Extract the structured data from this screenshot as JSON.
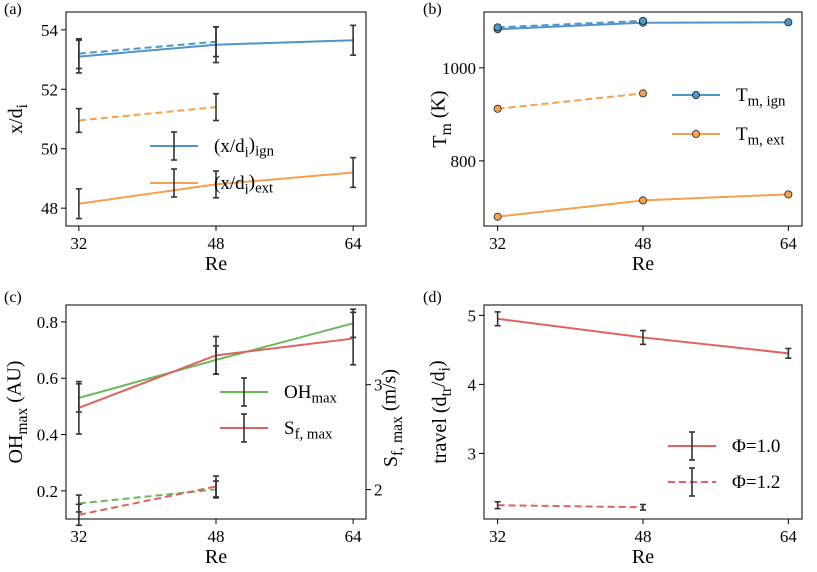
{
  "colors": {
    "blue": "#4f95c9",
    "orange": "#f5a04d",
    "green": "#6ab857",
    "red": "#de6262",
    "errorbar": "#333333"
  },
  "chart_data": [
    {
      "panel": "(a)",
      "type": "line",
      "xlabel": "Re",
      "ylabel": {
        "main": "x/d",
        "sub": "i"
      },
      "x_ticks": [
        "32",
        "48",
        "64"
      ],
      "y_ticks": [
        "48",
        "50",
        "52",
        "54"
      ],
      "xlim": [
        30.5,
        65.5
      ],
      "ylim": [
        47.4,
        54.6
      ],
      "legend": [
        {
          "main": "(x/d",
          "sub": "i",
          "close": ")",
          "sub2": "ign",
          "color": "#4f95c9",
          "style": "solid"
        },
        {
          "main": "(x/d",
          "sub": "i",
          "close": ")",
          "sub2": "ext",
          "color": "#f5a04d",
          "style": "solid"
        }
      ],
      "series": [
        {
          "name": "(x/d_i)_ign",
          "color": "#4f95c9",
          "style": "solid",
          "markers": false,
          "x": [
            32,
            48,
            64
          ],
          "y": [
            53.1,
            53.5,
            53.65
          ],
          "err": [
            0.55,
            0.6,
            0.5
          ]
        },
        {
          "name": "(x/d_i)_ign dashed",
          "color": "#4f95c9",
          "style": "dashed",
          "markers": false,
          "x": [
            32,
            48
          ],
          "y": [
            53.2,
            53.6
          ],
          "err": [
            0.5,
            0.5
          ]
        },
        {
          "name": "(x/d_i)_ext dashed",
          "color": "#f5a04d",
          "style": "dashed",
          "markers": false,
          "x": [
            32,
            48
          ],
          "y": [
            50.95,
            51.4
          ],
          "err": [
            0.4,
            0.45
          ]
        },
        {
          "name": "(x/d_i)_ext",
          "color": "#f5a04d",
          "style": "solid",
          "markers": false,
          "x": [
            32,
            48,
            64
          ],
          "y": [
            48.15,
            48.8,
            49.2
          ],
          "err": [
            0.5,
            0.45,
            0.5
          ]
        }
      ]
    },
    {
      "panel": "(b)",
      "type": "line",
      "xlabel": "Re",
      "ylabel": {
        "main": "T",
        "sub": "m",
        "rest": " (K)"
      },
      "x_ticks": [
        "32",
        "48",
        "64"
      ],
      "y_ticks": [
        "800",
        "1000"
      ],
      "xlim": [
        30.5,
        65.5
      ],
      "ylim": [
        660,
        1120
      ],
      "legend": [
        {
          "main": "T",
          "sub": "m, ign",
          "color": "#4f95c9",
          "style": "solid",
          "marker": true
        },
        {
          "main": "T",
          "sub": "m, ext",
          "color": "#f5a04d",
          "style": "solid",
          "marker": true
        }
      ],
      "series": [
        {
          "name": "T_m,ign",
          "color": "#4f95c9",
          "style": "solid",
          "markers": true,
          "x": [
            32,
            48,
            64
          ],
          "y": [
            1083,
            1097,
            1098
          ]
        },
        {
          "name": "T_m,ign dashed",
          "color": "#4f95c9",
          "style": "dashed",
          "markers": true,
          "x": [
            32,
            48
          ],
          "y": [
            1087,
            1101
          ]
        },
        {
          "name": "T_m,ext dashed",
          "color": "#f5a04d",
          "style": "dashed",
          "markers": true,
          "x": [
            32,
            48
          ],
          "y": [
            912,
            945
          ]
        },
        {
          "name": "T_m,ext",
          "color": "#f5a04d",
          "style": "solid",
          "markers": true,
          "x": [
            32,
            48,
            64
          ],
          "y": [
            680,
            715,
            728
          ]
        }
      ]
    },
    {
      "panel": "(c)",
      "type": "line",
      "xlabel": "Re",
      "ylabel": {
        "main": "OH",
        "sub": "max",
        "rest": " (AU)"
      },
      "ylabel_right": {
        "main": "S",
        "sub": "f, max",
        "rest": " (m/s)"
      },
      "x_ticks": [
        "32",
        "48",
        "64"
      ],
      "y_ticks": [
        "0.2",
        "0.4",
        "0.6",
        "0.8"
      ],
      "y2_ticks": [
        "2",
        "3"
      ],
      "xlim": [
        30.5,
        65.5
      ],
      "ylim": [
        0.1,
        0.86
      ],
      "y2lim": [
        1.72,
        3.76
      ],
      "legend": [
        {
          "main": "OH",
          "sub": "max",
          "color": "#6ab857",
          "style": "solid"
        },
        {
          "main": "S",
          "sub": "f, max",
          "color": "#de6262",
          "style": "solid"
        }
      ],
      "series": [
        {
          "name": "OH_max",
          "axis": "left",
          "color": "#6ab857",
          "style": "solid",
          "markers": false,
          "x": [
            32,
            48,
            64
          ],
          "y": [
            0.53,
            0.665,
            0.795
          ],
          "err": [
            0.05,
            0.05,
            0.05
          ]
        },
        {
          "name": "OH_max dashed",
          "axis": "left",
          "color": "#6ab857",
          "style": "dashed",
          "markers": false,
          "x": [
            32,
            48
          ],
          "y": [
            0.155,
            0.205
          ],
          "err": [
            0.03,
            0.03
          ]
        },
        {
          "name": "S_f,max",
          "axis": "right",
          "color": "#de6262",
          "style": "solid",
          "markers": false,
          "x": [
            32,
            48,
            64
          ],
          "y": [
            2.78,
            3.28,
            3.44
          ],
          "err": [
            0.25,
            0.18,
            0.25
          ]
        },
        {
          "name": "S_f,max dashed",
          "axis": "right",
          "color": "#de6262",
          "style": "dashed",
          "markers": false,
          "x": [
            32,
            48
          ],
          "y": [
            1.76,
            2.03
          ],
          "err": [
            0.1,
            0.1
          ]
        }
      ]
    },
    {
      "panel": "(d)",
      "type": "line",
      "xlabel": "Re",
      "ylabel": {
        "main": "travel (d",
        "sub": "tr",
        "mid": "/d",
        "sub2": "i",
        "rest": ")"
      },
      "x_ticks": [
        "32",
        "48",
        "64"
      ],
      "y_ticks": [
        "3",
        "4",
        "5"
      ],
      "xlim": [
        30.5,
        65.5
      ],
      "ylim": [
        2.05,
        5.15
      ],
      "legend": [
        {
          "main": "Φ=1.0",
          "color": "#de6262",
          "style": "solid"
        },
        {
          "main": "Φ=1.2",
          "color": "#de6262",
          "style": "dashed"
        }
      ],
      "series": [
        {
          "name": "Φ=1.0",
          "color": "#de6262",
          "style": "solid",
          "markers": false,
          "x": [
            32,
            48,
            64
          ],
          "y": [
            4.95,
            4.68,
            4.45
          ],
          "err": [
            0.1,
            0.1,
            0.07
          ]
        },
        {
          "name": "Φ=1.2",
          "color": "#de6262",
          "style": "dashed",
          "markers": false,
          "x": [
            32,
            48
          ],
          "y": [
            2.25,
            2.22
          ],
          "err": [
            0.05,
            0.04
          ]
        }
      ]
    }
  ]
}
